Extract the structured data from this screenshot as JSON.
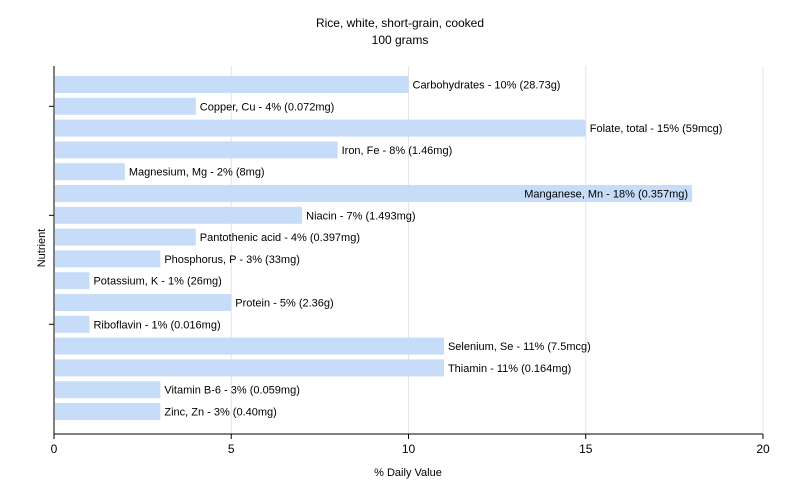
{
  "chart_data": {
    "type": "bar",
    "orientation": "horizontal",
    "title": "Rice, white, short-grain, cooked",
    "subtitle": "100 grams",
    "xlabel": "% Daily Value",
    "ylabel": "Nutrient",
    "xlim": [
      0,
      20
    ],
    "xticks": [
      0,
      5,
      10,
      15,
      20
    ],
    "xtick_labels": [
      "0",
      "5",
      "10",
      "15",
      "20"
    ],
    "grid": "vertical",
    "bar_color": "#c6dcf8",
    "categories": [
      "Carbohydrates",
      "Copper, Cu",
      "Folate, total",
      "Iron, Fe",
      "Magnesium, Mg",
      "Manganese, Mn",
      "Niacin",
      "Pantothenic acid",
      "Phosphorus, P",
      "Potassium, K",
      "Protein",
      "Riboflavin",
      "Selenium, Se",
      "Thiamin",
      "Vitamin B-6",
      "Zinc, Zn"
    ],
    "values": [
      10,
      4,
      15,
      8,
      2,
      18,
      7,
      4,
      3,
      1,
      5,
      1,
      11,
      11,
      3,
      3
    ],
    "data_labels": [
      "Carbohydrates - 10% (28.73g)",
      "Copper, Cu - 4% (0.072mg)",
      "Folate, total - 15% (59mcg)",
      "Iron, Fe - 8% (1.46mg)",
      "Magnesium, Mg - 2% (8mg)",
      "Manganese, Mn - 18% (0.357mg)",
      "Niacin - 7% (1.493mg)",
      "Pantothenic acid - 4% (0.397mg)",
      "Phosphorus, P - 3% (33mg)",
      "Potassium, K - 1% (26mg)",
      "Protein - 5% (2.36g)",
      "Riboflavin - 1% (0.016mg)",
      "Selenium, Se - 11% (7.5mcg)",
      "Thiamin - 11% (0.164mg)",
      "Vitamin B-6 - 3% (0.059mg)",
      "Zinc, Zn - 3% (0.40mg)"
    ]
  }
}
